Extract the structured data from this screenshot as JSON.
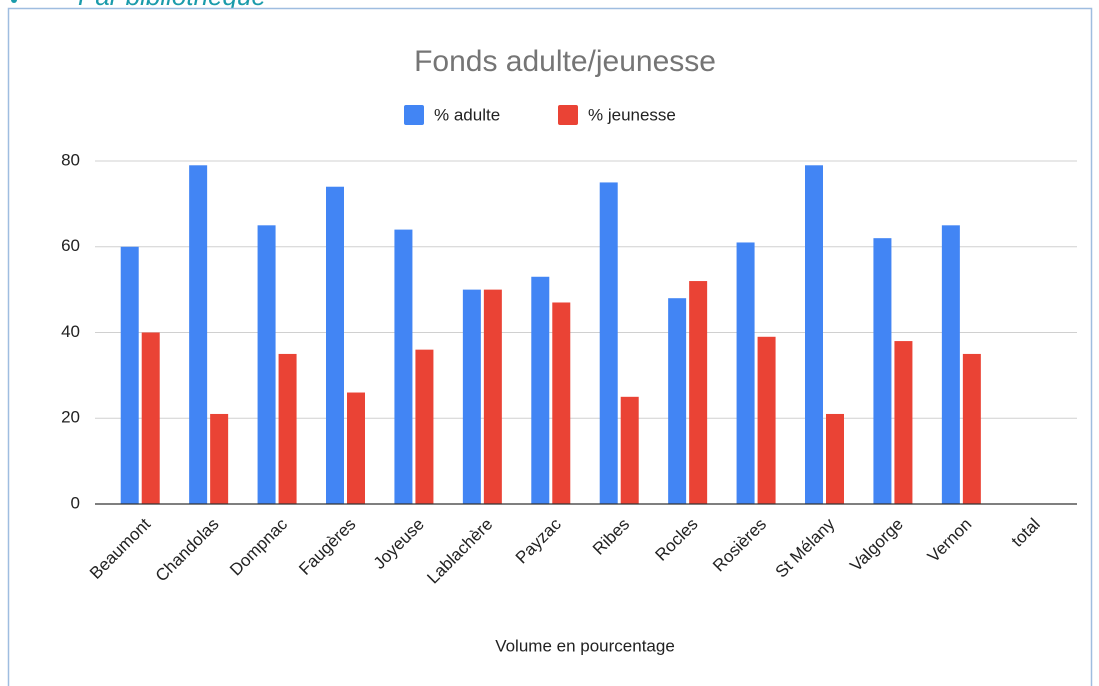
{
  "heading": "Par bibliothèque",
  "chart_data": {
    "type": "bar",
    "title": "Fonds adulte/jeunesse",
    "x_label": "Volume en pourcentage",
    "categories": [
      "Beaumont",
      "Chandolas",
      "Dompnac",
      "Faugères",
      "Joyeuse",
      "Lablachère",
      "Payzac",
      "Ribes",
      "Rocles",
      "Rosières",
      "St Mélany",
      "Valgorge",
      "Vernon",
      "total"
    ],
    "series": [
      {
        "name": "% adulte",
        "color": "#4285f4",
        "values": [
          60,
          79,
          65,
          74,
          64,
          50,
          53,
          75,
          48,
          61,
          79,
          62,
          65,
          null
        ]
      },
      {
        "name": "% jeunesse",
        "color": "#ea4335",
        "values": [
          40,
          21,
          35,
          26,
          36,
          50,
          47,
          25,
          52,
          39,
          21,
          38,
          35,
          null
        ]
      }
    ],
    "ylim": [
      0,
      80
    ],
    "yticks": [
      0,
      20,
      40,
      60,
      80
    ],
    "grid": true,
    "legend": "top"
  }
}
